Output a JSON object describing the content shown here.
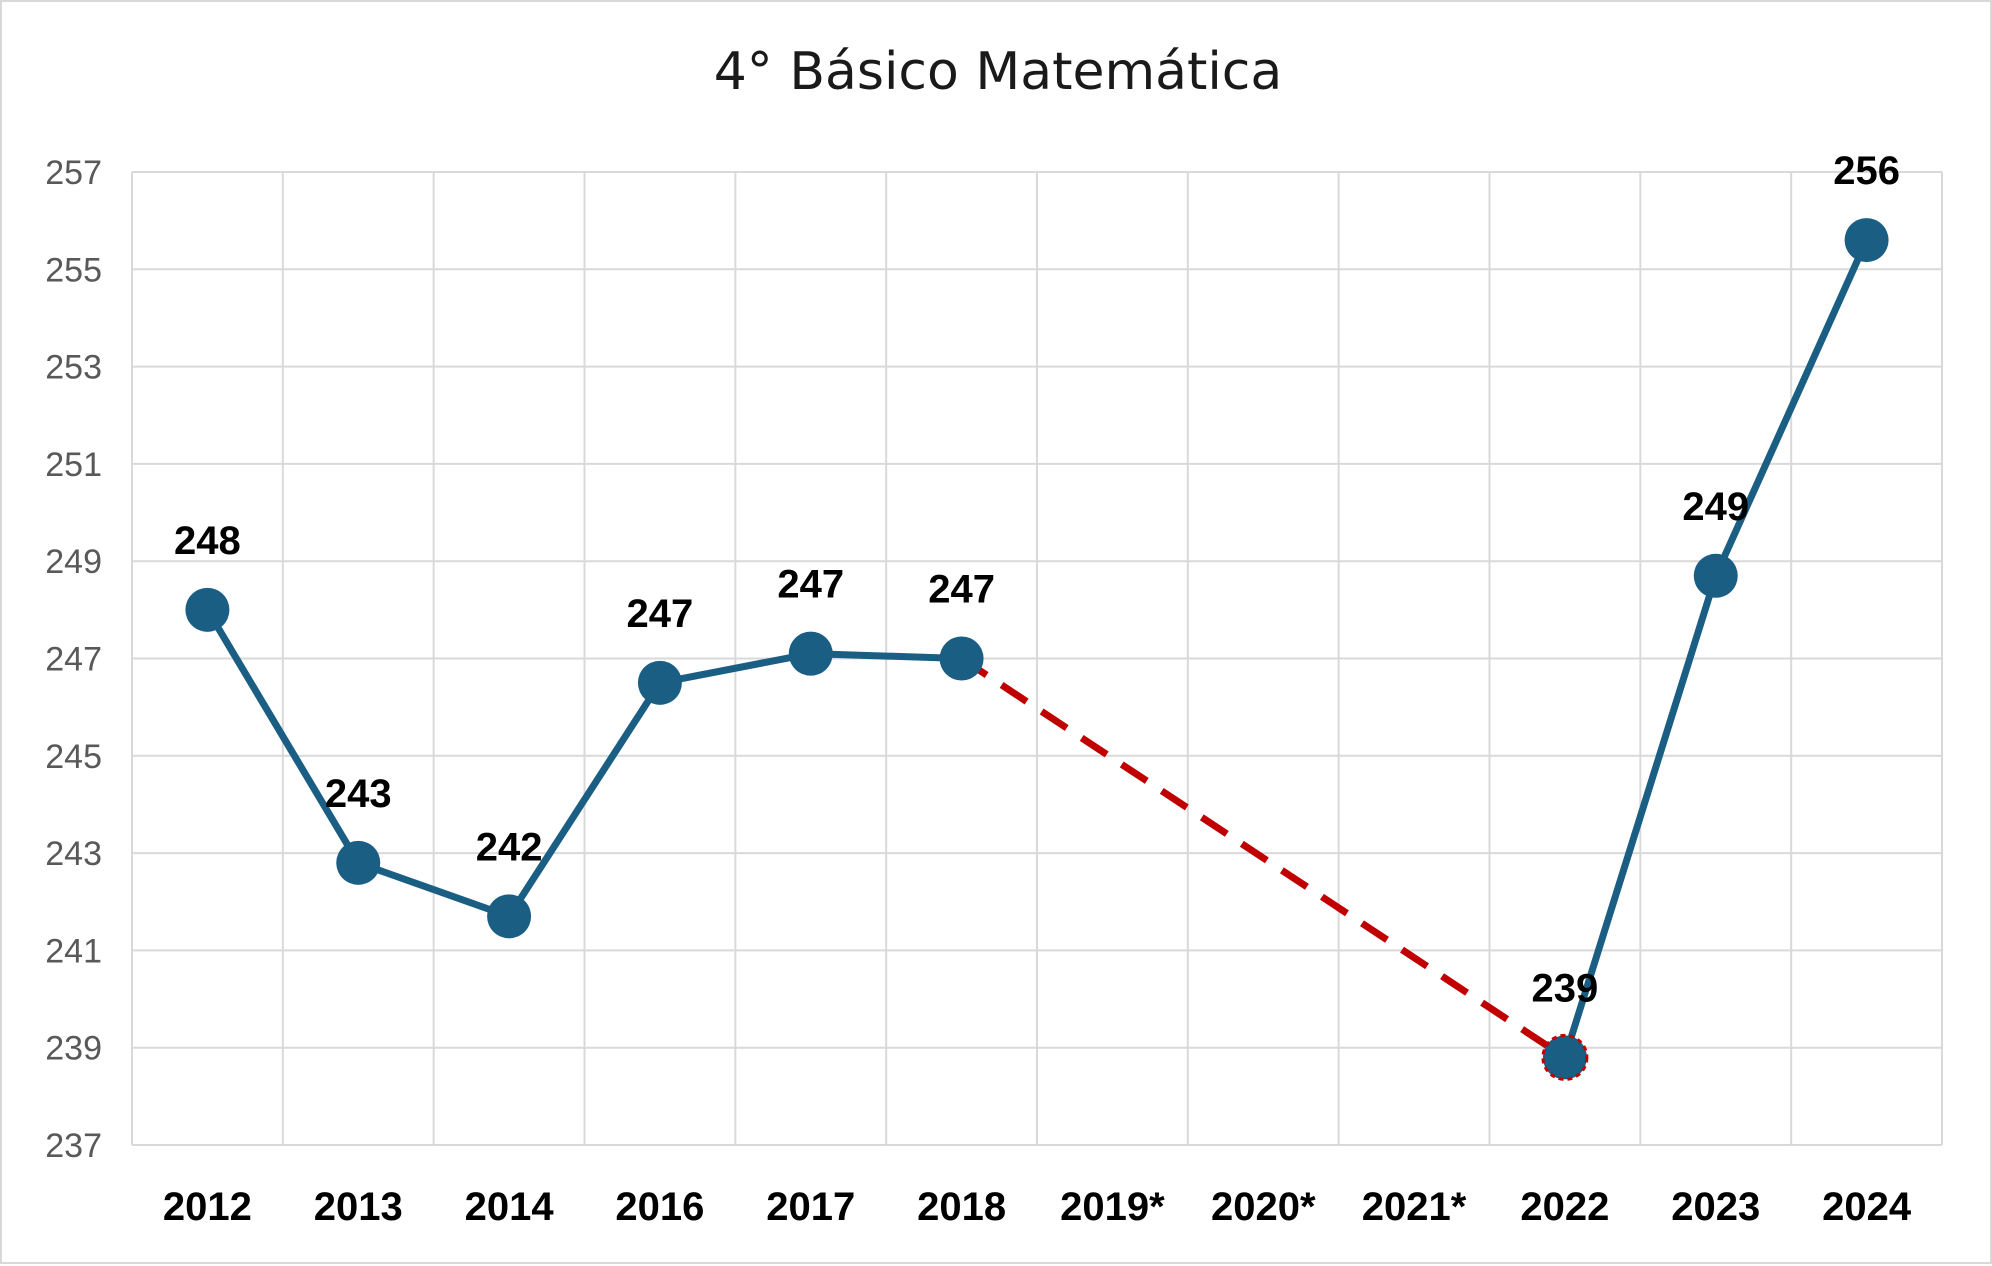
{
  "chart_data": {
    "type": "line",
    "title": "4° Básico Matemática",
    "xlabel": "",
    "ylabel": "",
    "categories": [
      "2012",
      "2013",
      "2014",
      "2016",
      "2017",
      "2018",
      "2019*",
      "2020*",
      "2021*",
      "2022",
      "2023",
      "2024"
    ],
    "series": [
      {
        "values": [
          248,
          242.8,
          241.7,
          246.5,
          247.1,
          247,
          null,
          null,
          null,
          238.8,
          248.7,
          255.6
        ],
        "data_labels": [
          "248",
          "243",
          "242",
          "247",
          "247",
          "247",
          "",
          "",
          "",
          "239",
          "249",
          "256"
        ]
      }
    ],
    "gap_bridge": {
      "from_category": "2018",
      "to_category": "2022",
      "style": "dashed",
      "color": "#c00000"
    },
    "ylim": [
      237,
      257
    ],
    "yticks": [
      237,
      239,
      241,
      243,
      245,
      247,
      249,
      251,
      253,
      255,
      257
    ],
    "grid": true,
    "legend": "none",
    "colors": {
      "line": "#1b5e84",
      "marker": "#1b5e84",
      "bridge": "#c00000",
      "grid": "#d9d9d9",
      "axis_text": "#595959"
    }
  }
}
